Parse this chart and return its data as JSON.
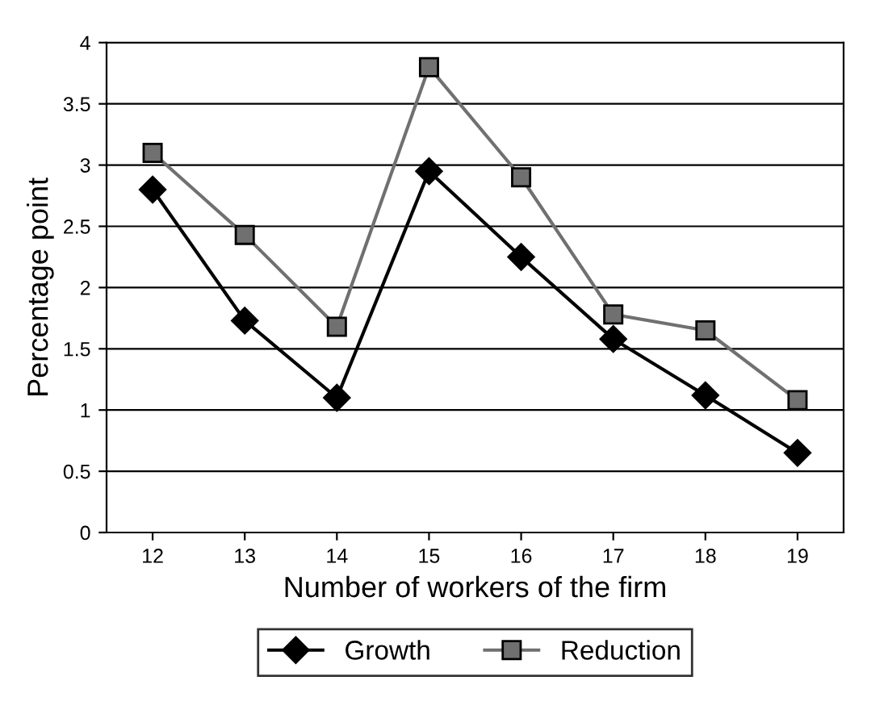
{
  "chart_data": {
    "type": "line",
    "xlabel": "Number of workers of the firm",
    "ylabel": "Percentage point",
    "categories": [
      "12",
      "13",
      "14",
      "15",
      "16",
      "17",
      "18",
      "19"
    ],
    "series": [
      {
        "name": "Growth",
        "color": "#000000",
        "marker": "diamond",
        "values": [
          2.8,
          1.73,
          1.1,
          2.95,
          2.25,
          1.58,
          1.12,
          0.65
        ]
      },
      {
        "name": "Reduction",
        "color": "#707070",
        "marker": "square",
        "values": [
          3.1,
          2.43,
          1.68,
          3.8,
          2.9,
          1.78,
          1.65,
          1.08
        ]
      }
    ],
    "ylim": [
      0,
      4
    ],
    "yticks": [
      0,
      0.5,
      1,
      1.5,
      2,
      2.5,
      3,
      3.5,
      4
    ],
    "grid": "y",
    "legend": "bottom"
  }
}
